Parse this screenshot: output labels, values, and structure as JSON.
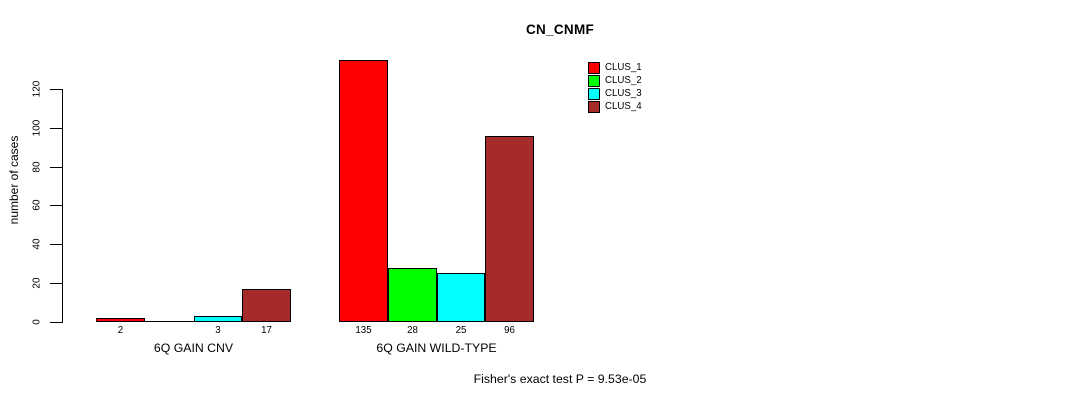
{
  "title": "CN_CNMF",
  "annotation": "Fisher's exact test P = 9.53e-05",
  "colors": {
    "background": "#FFFFFF",
    "axis": "#000000",
    "text": "#000000",
    "bar_border": "#000000",
    "clus_1": "#FF0000",
    "clus_2": "#00FF00",
    "clus_3": "#00FFFF",
    "clus_4": "#A52A2A"
  },
  "chart_data": {
    "type": "bar",
    "title": "CN_CNMF",
    "xlabel": "",
    "ylabel": "number of cases",
    "yticks": [
      0,
      20,
      40,
      60,
      80,
      100,
      120
    ],
    "ylim": [
      0,
      146
    ],
    "grid": false,
    "legend_position": "top-right",
    "categories": [
      "6Q GAIN CNV",
      "6Q GAIN WILD-TYPE"
    ],
    "series": [
      {
        "name": "CLUS_1",
        "color": "#FF0000",
        "values": [
          2,
          135
        ]
      },
      {
        "name": "CLUS_2",
        "color": "#00FF00",
        "values": [
          0,
          28
        ]
      },
      {
        "name": "CLUS_3",
        "color": "#00FFFF",
        "values": [
          3,
          25
        ]
      },
      {
        "name": "CLUS_4",
        "color": "#A52A2A",
        "values": [
          17,
          96
        ]
      }
    ],
    "bar_value_labels": [
      [
        "2",
        "",
        "3",
        "17"
      ],
      [
        "135",
        "28",
        "25",
        "96"
      ]
    ],
    "annotation": "Fisher's exact test P = 9.53e-05"
  }
}
